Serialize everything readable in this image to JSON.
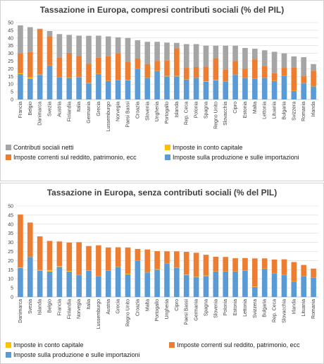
{
  "colors": {
    "produzione": "#5b9bd5",
    "reddito": "#ed7d31",
    "capitale": "#ffc000",
    "contributi": "#a5a5a5"
  },
  "chart_data": [
    {
      "type": "bar",
      "stacked": true,
      "title": "Tassazione in Europa, compresi contributi sociali (% del PIL)",
      "xlabel": "",
      "ylabel": "",
      "ylim": [
        0,
        50
      ],
      "yticks": [
        0,
        5,
        10,
        15,
        20,
        25,
        30,
        35,
        40,
        45,
        50
      ],
      "grid": true,
      "legend_position": "bottom",
      "categories": [
        "Francia",
        "Belgio",
        "Danimarca",
        "Svezia",
        "Austria",
        "Finlandia",
        "Italia",
        "Germania",
        "Grecia",
        "Lussemburgo",
        "Norvegia",
        "Paesi Bassi",
        "Croazia",
        "Slovenia",
        "Ungheria",
        "Portogallo",
        "Islanda",
        "Rep. Ceca",
        "Polonia",
        "Spagna",
        "Regno Unito",
        "Slovacchia",
        "Cipro",
        "Estonia",
        "Malta",
        "Lettonia",
        "Lituania",
        "Bulgaria",
        "Svizzera",
        "Romania",
        "Irlanda"
      ],
      "series": [
        {
          "name": "Imposte sulla produzione e sulle importazioni",
          "color": "produzione",
          "values": [
            16.5,
            13.5,
            16,
            22,
            14.5,
            14,
            14.5,
            10.5,
            16.5,
            12,
            12.5,
            12.5,
            20,
            14,
            18.5,
            15,
            15,
            13,
            14,
            11.5,
            12.5,
            11.5,
            16,
            14,
            13.5,
            14,
            12,
            15.5,
            5.5,
            10.5,
            8.5
          ]
        },
        {
          "name": "Imposte in  conto  capitale",
          "color": "capitale",
          "values": [
            0.5,
            0.8,
            0.3,
            0.1,
            0.1,
            0.3,
            0.2,
            0.2,
            0.2,
            0.1,
            0.1,
            0.3,
            0.1,
            0.1,
            0.1,
            0.3,
            0.3,
            0.1,
            0.1,
            0.3,
            0.3,
            0.1,
            0.1,
            0.1,
            0.1,
            0.1,
            0.1,
            0.1,
            0.2,
            0.1,
            0.2
          ]
        },
        {
          "name": "Imposte correnti sul reddito, patrimonio, ecc",
          "color": "reddito",
          "values": [
            13,
            16.5,
            29.5,
            19,
            12.5,
            16,
            13.5,
            12.5,
            10.5,
            16,
            17.5,
            11.5,
            6.5,
            9,
            6.5,
            10,
            18,
            7.5,
            7,
            9.5,
            14,
            8,
            9,
            6,
            12.5,
            7.5,
            5,
            5,
            15,
            4.5,
            10
          ]
        },
        {
          "name": "Contributi sociali netti",
          "color": "contributi",
          "values": [
            18.2,
            16.2,
            0.2,
            3.4,
            15.4,
            11.7,
            13.3,
            18.2,
            14.3,
            12.9,
            10.3,
            15.7,
            11.9,
            14.4,
            12.4,
            11.7,
            3.5,
            15.4,
            14.9,
            13.7,
            8.2,
            15.4,
            9.9,
            13.4,
            6.9,
            10.4,
            13.9,
            9.4,
            7.3,
            12.4,
            4.3
          ]
        }
      ]
    },
    {
      "type": "bar",
      "stacked": true,
      "title": "Tassazione in Europa, senza contributi sociali (% del PIL)",
      "xlabel": "",
      "ylabel": "",
      "ylim": [
        0,
        50
      ],
      "yticks": [
        0,
        5,
        10,
        15,
        20,
        25,
        30,
        35,
        40,
        45,
        50
      ],
      "grid": true,
      "legend_position": "bottom",
      "categories": [
        "Danimarca",
        "Svezia",
        "Islanda",
        "Belgio",
        "Francia",
        "Finlandia",
        "Norvegia",
        "Italia",
        "Lussemburgo",
        "Austria",
        "Grecia",
        "Regno Unito",
        "Croazia",
        "Malta",
        "Portogallo",
        "Ungheria",
        "Cipro",
        "Paesi Bassi",
        "Germania",
        "Spagna",
        "Slovenia",
        "Polonia",
        "Estonia",
        "Lettonia",
        "Svizzera",
        "Bulgaria",
        "Rep. Ceca",
        "Slovacchia",
        "Irlanda",
        "Lituania",
        "Romania"
      ],
      "series": [
        {
          "name": "Imposte sulla produzione e sulle importazioni",
          "color": "produzione",
          "values": [
            16,
            22,
            14.5,
            14,
            16.5,
            14,
            12,
            14.5,
            11.5,
            14.5,
            16.5,
            12.5,
            20,
            13.5,
            15,
            18.5,
            16,
            12,
            11,
            11.5,
            14,
            14,
            14,
            14.5,
            5.5,
            15.5,
            13,
            12,
            8.5,
            11.5,
            10.5
          ]
        },
        {
          "name": "Imposte in  conto  capitale",
          "color": "capitale",
          "values": [
            0.3,
            0.1,
            0.3,
            0.8,
            0.5,
            0.3,
            0.1,
            0.2,
            0.1,
            0.1,
            0.2,
            0.3,
            0.1,
            0.1,
            0.3,
            0.1,
            0.1,
            0.3,
            0.2,
            0.3,
            0.1,
            0.1,
            0.1,
            0.1,
            0.2,
            0.1,
            0.1,
            0.1,
            0.2,
            0.1,
            0.1
          ]
        },
        {
          "name": "Imposte correnti sul reddito, patrimonio, ecc",
          "color": "reddito",
          "values": [
            29,
            18.8,
            18.5,
            16,
            13.5,
            15.6,
            18,
            13.3,
            16.8,
            12.6,
            10.6,
            14.4,
            6.3,
            12.5,
            9.9,
            6.5,
            9,
            12.5,
            13.1,
            11.4,
            8,
            7.9,
            7.2,
            6.8,
            15.5,
            5.6,
            7.5,
            8.6,
            10.5,
            6,
            5
          ]
        }
      ]
    }
  ],
  "legends": [
    {
      "items": [
        {
          "label": "Contributi sociali netti",
          "color": "contributi"
        },
        {
          "label": "Imposte  in  conto  capitale",
          "color": "capitale"
        },
        {
          "label": "Imposte correnti sul reddito, patrimonio, ecc",
          "color": "reddito"
        },
        {
          "label": "Imposte sulla produzione e sulle importazioni",
          "color": "produzione"
        }
      ]
    },
    {
      "items": [
        {
          "label": "Imposte  in  conto  capitale",
          "color": "capitale"
        },
        {
          "label": "Imposte correnti sul reddito, patrimonio, ecc",
          "color": "reddito"
        },
        {
          "label": "Imposte sulla produzione e sulle importazioni",
          "color": "produzione"
        }
      ]
    }
  ]
}
